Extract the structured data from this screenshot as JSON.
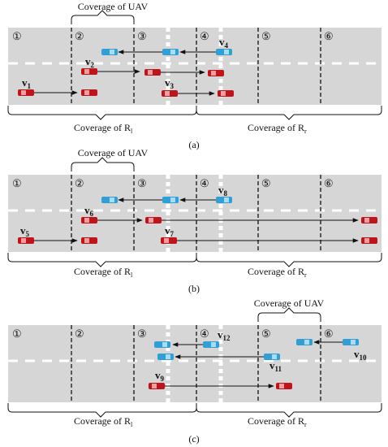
{
  "colors": {
    "road": "#d6d6d6",
    "lane_mark": "#ffffff",
    "divider": "#111111",
    "car_red": "#c0141b",
    "car_blue": "#2f9fd6",
    "arrow": "#111111",
    "text": "#111111"
  },
  "panels": [
    {
      "caption": "(a)",
      "uav_label": "Coverage of UAV",
      "left_label": "Coverage of R",
      "left_sub": "l",
      "right_label": "Coverage of R",
      "right_sub": "r",
      "segments": [
        "①",
        "②",
        "③",
        "④",
        "⑤",
        "⑥"
      ],
      "vehicles": [
        {
          "id": "v1",
          "label": "v",
          "sub": "1",
          "color": "red"
        },
        {
          "id": "v2",
          "label": "v",
          "sub": "2",
          "color": "red"
        },
        {
          "id": "v3",
          "label": "v",
          "sub": "3",
          "color": "red"
        },
        {
          "id": "v4",
          "label": "v",
          "sub": "4",
          "color": "blue"
        }
      ]
    },
    {
      "caption": "(b)",
      "uav_label": "Coverage of UAV",
      "left_label": "Coverage of R",
      "left_sub": "l",
      "right_label": "Coverage of R",
      "right_sub": "r",
      "segments": [
        "①",
        "②",
        "③",
        "④",
        "⑤",
        "⑥"
      ],
      "vehicles": [
        {
          "id": "v5",
          "label": "v",
          "sub": "5",
          "color": "red"
        },
        {
          "id": "v6",
          "label": "v",
          "sub": "6",
          "color": "red"
        },
        {
          "id": "v7",
          "label": "v",
          "sub": "7",
          "color": "red"
        },
        {
          "id": "v8",
          "label": "v",
          "sub": "8",
          "color": "blue"
        }
      ]
    },
    {
      "caption": "(c)",
      "uav_label": "Coverage of UAV",
      "left_label": "Coverage of R",
      "left_sub": "l",
      "right_label": "Coverage of R",
      "right_sub": "r",
      "segments": [
        "①",
        "②",
        "③",
        "④",
        "⑤",
        "⑥"
      ],
      "vehicles": [
        {
          "id": "v9",
          "label": "v",
          "sub": "9",
          "color": "red"
        },
        {
          "id": "v10",
          "label": "v",
          "sub": "10",
          "color": "blue"
        },
        {
          "id": "v11",
          "label": "v",
          "sub": "11",
          "color": "blue"
        },
        {
          "id": "v12",
          "label": "v",
          "sub": "12",
          "color": "blue"
        }
      ]
    }
  ]
}
